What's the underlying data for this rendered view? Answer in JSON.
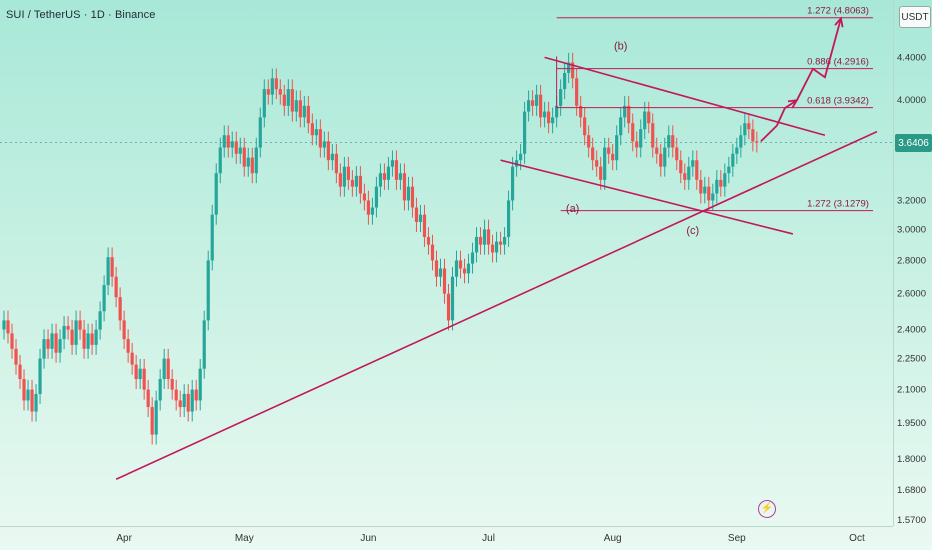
{
  "header": {
    "title": "SUI / TetherUS · 1D · Binance"
  },
  "axis": {
    "unit_label": "USDT",
    "current_price_tag": "3.6406"
  },
  "icons": {
    "flash": "flash-icon"
  },
  "colors": {
    "up": "#26a69a",
    "down": "#ef5350",
    "annotation": "#c2185b",
    "price_tag": "#2a9a86"
  },
  "chart_data": {
    "type": "candlestick",
    "y_scale": "log",
    "ylim": [
      1.55,
      5.0
    ],
    "yticks": [
      1.57,
      1.68,
      1.8,
      1.95,
      2.1,
      2.25,
      2.4,
      2.6,
      2.8,
      3.0,
      3.2,
      3.6406,
      4.0,
      4.4
    ],
    "ytick_labels": [
      "1.5700",
      "1.6800",
      "1.8000",
      "1.9500",
      "2.1000",
      "2.2500",
      "2.4000",
      "2.6000",
      "2.8000",
      "3.0000",
      "3.2000",
      "3.6406",
      "4.0000",
      "4.4000"
    ],
    "xticks": [
      "Apr",
      "May",
      "Jun",
      "Jul",
      "Aug",
      "Sep",
      "Oct"
    ],
    "xtick_days": [
      31,
      61,
      92,
      122,
      153,
      184,
      214
    ],
    "days_range": [
      0,
      223
    ],
    "current_price": 3.6406,
    "closes": [
      2.45,
      2.38,
      2.3,
      2.22,
      2.15,
      2.05,
      2.1,
      2.0,
      2.08,
      2.25,
      2.35,
      2.3,
      2.38,
      2.28,
      2.35,
      2.42,
      2.4,
      2.32,
      2.45,
      2.4,
      2.3,
      2.38,
      2.32,
      2.4,
      2.5,
      2.65,
      2.82,
      2.7,
      2.58,
      2.45,
      2.35,
      2.28,
      2.22,
      2.15,
      2.2,
      2.1,
      2.02,
      1.9,
      2.05,
      2.15,
      2.25,
      2.15,
      2.1,
      2.05,
      2.02,
      2.08,
      2.0,
      2.1,
      2.05,
      2.2,
      2.45,
      2.8,
      3.1,
      3.4,
      3.6,
      3.7,
      3.6,
      3.65,
      3.55,
      3.6,
      3.45,
      3.52,
      3.4,
      3.6,
      3.85,
      4.1,
      4.05,
      4.2,
      4.1,
      4.05,
      3.95,
      4.1,
      3.9,
      4.0,
      3.85,
      3.95,
      3.8,
      3.7,
      3.75,
      3.6,
      3.65,
      3.5,
      3.55,
      3.4,
      3.3,
      3.45,
      3.35,
      3.3,
      3.38,
      3.25,
      3.2,
      3.1,
      3.15,
      3.3,
      3.4,
      3.35,
      3.45,
      3.5,
      3.35,
      3.4,
      3.2,
      3.3,
      3.15,
      3.05,
      3.1,
      2.95,
      2.9,
      2.8,
      2.7,
      2.75,
      2.6,
      2.45,
      2.7,
      2.8,
      2.75,
      2.72,
      2.78,
      2.85,
      2.95,
      2.9,
      3.0,
      2.9,
      2.85,
      2.92,
      2.9,
      2.95,
      3.2,
      3.45,
      3.5,
      3.55,
      3.9,
      4.0,
      3.95,
      4.05,
      3.85,
      3.9,
      3.8,
      3.85,
      3.95,
      4.1,
      4.25,
      4.35,
      4.2,
      3.95,
      3.85,
      3.7,
      3.6,
      3.5,
      3.45,
      3.35,
      3.6,
      3.55,
      3.5,
      3.7,
      3.85,
      3.95,
      3.8,
      3.65,
      3.6,
      3.75,
      3.9,
      3.8,
      3.6,
      3.55,
      3.45,
      3.6,
      3.7,
      3.6,
      3.5,
      3.4,
      3.35,
      3.45,
      3.5,
      3.35,
      3.25,
      3.3,
      3.2,
      3.25,
      3.35,
      3.3,
      3.4,
      3.45,
      3.55,
      3.6,
      3.7,
      3.8,
      3.75,
      3.65,
      3.6406
    ],
    "line_annotations": [
      {
        "kind": "rising-trendline",
        "from": [
          29,
          1.72
        ],
        "to": [
          219,
          3.73
        ]
      },
      {
        "kind": "channel-upper",
        "from": [
          136,
          4.4
        ],
        "to": [
          206,
          3.7
        ]
      },
      {
        "kind": "channel-lower",
        "from": [
          125,
          3.5
        ],
        "to": [
          198,
          2.97
        ]
      }
    ],
    "forecast_path": [
      [
        190,
        3.65
      ],
      [
        194,
        3.78
      ],
      [
        196,
        3.93
      ],
      [
        199,
        4.0
      ],
      [
        203,
        4.29
      ],
      [
        206,
        4.21
      ],
      [
        210,
        4.8
      ]
    ],
    "levels": [
      {
        "label": "1.272 (4.8063)",
        "price": 4.8063,
        "from_day": 139,
        "to_day": 218
      },
      {
        "label": "0.886 (4.2916)",
        "price": 4.2916,
        "from_day": 139,
        "to_day": 218
      },
      {
        "label": "0.618 (3.9342)",
        "price": 3.9342,
        "from_day": 139,
        "to_day": 218
      },
      {
        "label": "1.272 (3.1279)",
        "price": 3.1279,
        "from_day": 140,
        "to_day": 218
      }
    ],
    "wave_labels": [
      {
        "text": "(b)",
        "day": 155,
        "price": 4.48
      },
      {
        "text": "(a)",
        "day": 143,
        "price": 3.12
      },
      {
        "text": "(c)",
        "day": 173,
        "price": 2.97
      }
    ]
  }
}
